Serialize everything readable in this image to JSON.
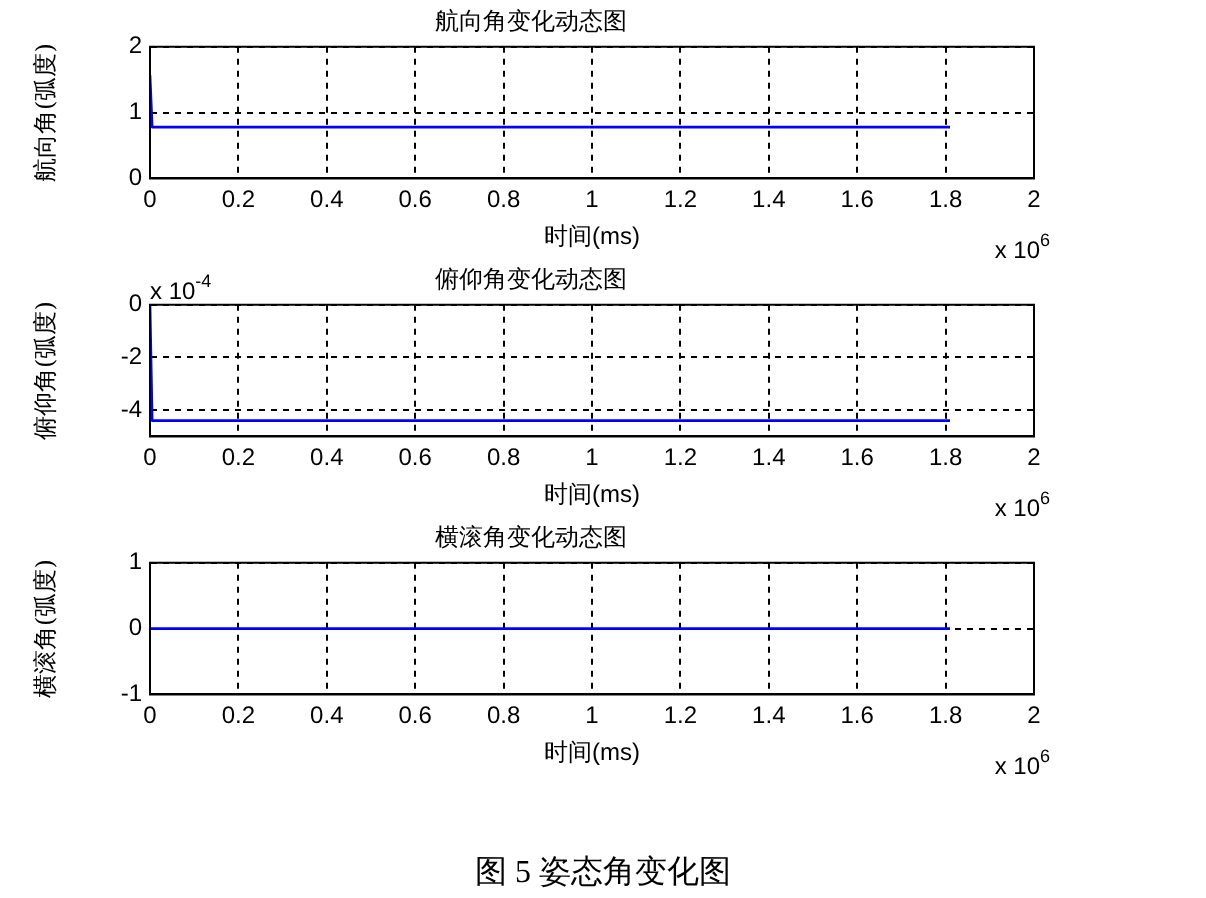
{
  "chart_data": [
    {
      "type": "line",
      "title": "航向角变化动态图",
      "xlabel": "时间(ms)",
      "ylabel": "航向角(弧度)",
      "marker": "none",
      "grid": true,
      "legend": false,
      "series": [
        {
          "color": "#0000ff",
          "x": [
            0,
            0.005,
            1.81
          ],
          "values": [
            1.57,
            0.78,
            0.78
          ]
        }
      ],
      "xlim": [
        0,
        2
      ],
      "xticks": [
        0,
        0.2,
        0.4,
        0.6,
        0.8,
        1,
        1.2,
        1.4,
        1.6,
        1.8,
        2
      ],
      "ylim": [
        0,
        2
      ],
      "yticks": [
        0,
        1,
        2
      ],
      "annotations": [
        "x 10$^{6}$"
      ]
    },
    {
      "type": "line",
      "title": "俯仰角变化动态图",
      "xlabel": "时间(ms)",
      "ylabel": "俯仰角(弧度)",
      "marker": "none",
      "grid": true,
      "legend": false,
      "series": [
        {
          "color": "#0000ff",
          "x": [
            0,
            0.005,
            1.81
          ],
          "values": [
            0,
            -4.4,
            -4.4
          ]
        }
      ],
      "xlim": [
        0,
        2
      ],
      "xticks": [
        0,
        0.2,
        0.4,
        0.6,
        0.8,
        1,
        1.2,
        1.4,
        1.6,
        1.8,
        2
      ],
      "ylim": [
        -5,
        0
      ],
      "yticks": [
        -4,
        -2,
        0
      ],
      "annotations": [
        "x 10$^{6}$",
        "x 10$^{-4}$"
      ]
    },
    {
      "type": "line",
      "title": "横滚角变化动态图",
      "xlabel": "时间(ms)",
      "ylabel": "横滚角(弧度)",
      "marker": "none",
      "grid": true,
      "legend": false,
      "series": [
        {
          "color": "#0000ff",
          "x": [
            0,
            1.81
          ],
          "values": [
            0,
            0
          ]
        }
      ],
      "xlim": [
        0,
        2
      ],
      "xticks": [
        0,
        0.2,
        0.4,
        0.6,
        0.8,
        1,
        1.2,
        1.4,
        1.6,
        1.8,
        2
      ],
      "ylim": [
        -1,
        1
      ],
      "yticks": [
        -1,
        0,
        1
      ],
      "annotations": [
        "x 10$^{6}$"
      ]
    },
    {
      "type": "other",
      "annotations": [
        "图 5 姿态角变化图"
      ]
    }
  ]
}
